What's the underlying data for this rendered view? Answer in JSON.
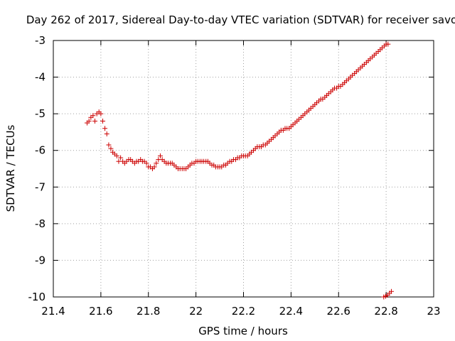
{
  "chart_data": {
    "type": "scatter",
    "title": "Day 262 of 2017, Sidereal Day-to-day VTEC variation (SDTVAR) for receiver savo",
    "xlabel": "GPS time / hours",
    "ylabel": "SDTVAR / TECUs",
    "xlim": [
      21.4,
      23.0
    ],
    "ylim": [
      -10,
      -3
    ],
    "x_ticks": [
      21.4,
      21.6,
      21.8,
      22.0,
      22.2,
      22.4,
      22.6,
      22.8,
      23.0
    ],
    "x_tick_labels": [
      "21.4",
      "21.6",
      "21.8",
      "22",
      "22.2",
      "22.4",
      "22.6",
      "22.8",
      "23"
    ],
    "y_ticks": [
      -3,
      -4,
      -5,
      -6,
      -7,
      -8,
      -9,
      -10
    ],
    "y_tick_labels": [
      "-3",
      "-4",
      "-5",
      "-6",
      "-7",
      "-8",
      "-9",
      "-10"
    ],
    "grid": true,
    "marker": "+",
    "color": "#cc0000",
    "series": [
      {
        "name": "SDTVAR",
        "points": [
          [
            21.542,
            -5.25
          ],
          [
            21.55,
            -5.2
          ],
          [
            21.558,
            -5.1
          ],
          [
            21.567,
            -5.05
          ],
          [
            21.575,
            -5.2
          ],
          [
            21.583,
            -5.0
          ],
          [
            21.592,
            -4.95
          ],
          [
            21.6,
            -5.0
          ],
          [
            21.608,
            -5.2
          ],
          [
            21.617,
            -5.4
          ],
          [
            21.625,
            -5.55
          ],
          [
            21.633,
            -5.85
          ],
          [
            21.642,
            -5.95
          ],
          [
            21.65,
            -6.05
          ],
          [
            21.658,
            -6.1
          ],
          [
            21.667,
            -6.15
          ],
          [
            21.675,
            -6.3
          ],
          [
            21.683,
            -6.2
          ],
          [
            21.692,
            -6.3
          ],
          [
            21.7,
            -6.35
          ],
          [
            21.708,
            -6.3
          ],
          [
            21.717,
            -6.25
          ],
          [
            21.725,
            -6.25
          ],
          [
            21.733,
            -6.3
          ],
          [
            21.742,
            -6.35
          ],
          [
            21.75,
            -6.3
          ],
          [
            21.758,
            -6.3
          ],
          [
            21.767,
            -6.25
          ],
          [
            21.775,
            -6.3
          ],
          [
            21.783,
            -6.3
          ],
          [
            21.792,
            -6.35
          ],
          [
            21.8,
            -6.45
          ],
          [
            21.808,
            -6.45
          ],
          [
            21.817,
            -6.5
          ],
          [
            21.825,
            -6.45
          ],
          [
            21.833,
            -6.35
          ],
          [
            21.842,
            -6.25
          ],
          [
            21.85,
            -6.15
          ],
          [
            21.858,
            -6.25
          ],
          [
            21.867,
            -6.3
          ],
          [
            21.875,
            -6.35
          ],
          [
            21.883,
            -6.35
          ],
          [
            21.892,
            -6.35
          ],
          [
            21.9,
            -6.35
          ],
          [
            21.908,
            -6.4
          ],
          [
            21.917,
            -6.45
          ],
          [
            21.925,
            -6.5
          ],
          [
            21.933,
            -6.5
          ],
          [
            21.942,
            -6.5
          ],
          [
            21.95,
            -6.5
          ],
          [
            21.958,
            -6.5
          ],
          [
            21.967,
            -6.45
          ],
          [
            21.975,
            -6.4
          ],
          [
            21.983,
            -6.35
          ],
          [
            21.992,
            -6.35
          ],
          [
            22.0,
            -6.3
          ],
          [
            22.008,
            -6.3
          ],
          [
            22.017,
            -6.3
          ],
          [
            22.025,
            -6.3
          ],
          [
            22.033,
            -6.3
          ],
          [
            22.042,
            -6.3
          ],
          [
            22.05,
            -6.3
          ],
          [
            22.058,
            -6.35
          ],
          [
            22.067,
            -6.4
          ],
          [
            22.075,
            -6.4
          ],
          [
            22.083,
            -6.45
          ],
          [
            22.092,
            -6.45
          ],
          [
            22.1,
            -6.45
          ],
          [
            22.108,
            -6.45
          ],
          [
            22.117,
            -6.4
          ],
          [
            22.125,
            -6.4
          ],
          [
            22.133,
            -6.35
          ],
          [
            22.142,
            -6.3
          ],
          [
            22.15,
            -6.3
          ],
          [
            22.158,
            -6.25
          ],
          [
            22.167,
            -6.25
          ],
          [
            22.175,
            -6.2
          ],
          [
            22.183,
            -6.2
          ],
          [
            22.192,
            -6.15
          ],
          [
            22.2,
            -6.15
          ],
          [
            22.208,
            -6.15
          ],
          [
            22.217,
            -6.15
          ],
          [
            22.225,
            -6.1
          ],
          [
            22.233,
            -6.05
          ],
          [
            22.242,
            -6.0
          ],
          [
            22.25,
            -5.95
          ],
          [
            22.258,
            -5.9
          ],
          [
            22.267,
            -5.9
          ],
          [
            22.275,
            -5.9
          ],
          [
            22.283,
            -5.85
          ],
          [
            22.292,
            -5.85
          ],
          [
            22.3,
            -5.8
          ],
          [
            22.308,
            -5.75
          ],
          [
            22.317,
            -5.7
          ],
          [
            22.325,
            -5.65
          ],
          [
            22.333,
            -5.6
          ],
          [
            22.342,
            -5.55
          ],
          [
            22.35,
            -5.5
          ],
          [
            22.358,
            -5.45
          ],
          [
            22.367,
            -5.45
          ],
          [
            22.375,
            -5.4
          ],
          [
            22.383,
            -5.4
          ],
          [
            22.392,
            -5.4
          ],
          [
            22.4,
            -5.35
          ],
          [
            22.408,
            -5.3
          ],
          [
            22.417,
            -5.25
          ],
          [
            22.425,
            -5.2
          ],
          [
            22.433,
            -5.15
          ],
          [
            22.442,
            -5.1
          ],
          [
            22.45,
            -5.05
          ],
          [
            22.458,
            -5.0
          ],
          [
            22.467,
            -4.95
          ],
          [
            22.475,
            -4.9
          ],
          [
            22.483,
            -4.85
          ],
          [
            22.492,
            -4.8
          ],
          [
            22.5,
            -4.75
          ],
          [
            22.508,
            -4.7
          ],
          [
            22.517,
            -4.65
          ],
          [
            22.525,
            -4.6
          ],
          [
            22.533,
            -4.6
          ],
          [
            22.542,
            -4.55
          ],
          [
            22.55,
            -4.5
          ],
          [
            22.558,
            -4.45
          ],
          [
            22.567,
            -4.4
          ],
          [
            22.575,
            -4.35
          ],
          [
            22.583,
            -4.3
          ],
          [
            22.592,
            -4.3
          ],
          [
            22.6,
            -4.25
          ],
          [
            22.608,
            -4.25
          ],
          [
            22.617,
            -4.2
          ],
          [
            22.625,
            -4.15
          ],
          [
            22.633,
            -4.1
          ],
          [
            22.642,
            -4.05
          ],
          [
            22.65,
            -4.0
          ],
          [
            22.658,
            -3.95
          ],
          [
            22.667,
            -3.9
          ],
          [
            22.675,
            -3.85
          ],
          [
            22.683,
            -3.8
          ],
          [
            22.692,
            -3.75
          ],
          [
            22.7,
            -3.7
          ],
          [
            22.708,
            -3.65
          ],
          [
            22.717,
            -3.6
          ],
          [
            22.725,
            -3.55
          ],
          [
            22.733,
            -3.5
          ],
          [
            22.742,
            -3.45
          ],
          [
            22.75,
            -3.4
          ],
          [
            22.758,
            -3.35
          ],
          [
            22.767,
            -3.3
          ],
          [
            22.775,
            -3.25
          ],
          [
            22.783,
            -3.2
          ],
          [
            22.792,
            -3.15
          ],
          [
            22.8,
            -3.1
          ],
          [
            22.808,
            -3.1
          ],
          [
            22.79,
            -10.0
          ],
          [
            22.798,
            -9.98
          ],
          [
            22.806,
            -9.95
          ],
          [
            22.814,
            -9.9
          ],
          [
            22.822,
            -9.85
          ]
        ]
      }
    ]
  }
}
